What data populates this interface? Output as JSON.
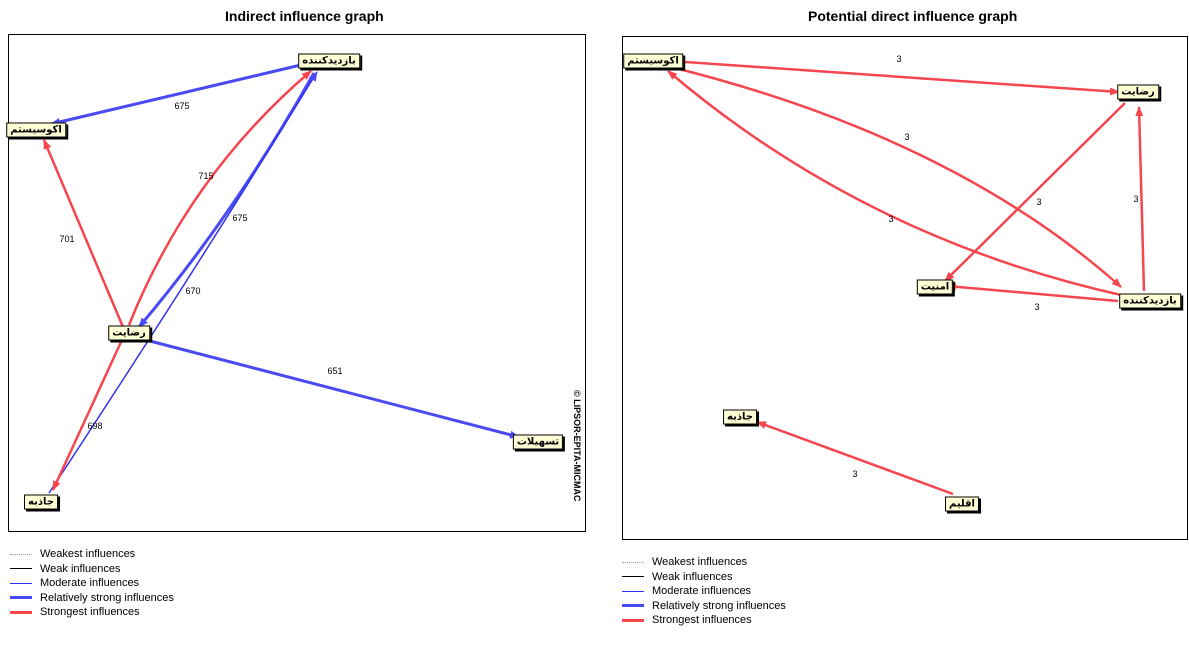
{
  "graphs": [
    {
      "title": "Indirect influence graph",
      "nodes": [
        {
          "id": "n1",
          "label": "بازدیدکننده"
        },
        {
          "id": "n2",
          "label": "اکوسیستم"
        },
        {
          "id": "n3",
          "label": "رضایت"
        },
        {
          "id": "n4",
          "label": "تسهیلات"
        },
        {
          "id": "n5",
          "label": "جاذبه"
        }
      ],
      "edges": [
        {
          "from": "n1",
          "to": "n2",
          "label": "675",
          "strength": "Relatively strong influences"
        },
        {
          "from": "n3",
          "to": "n2",
          "label": "701",
          "strength": "Strongest influences"
        },
        {
          "from": "n3",
          "to": "n1",
          "label": "715",
          "strength": "Strongest influences"
        },
        {
          "from": "n1",
          "to": "n3",
          "label": "675",
          "strength": "Relatively strong influences"
        },
        {
          "from": "n5",
          "to": "n1",
          "label": "670",
          "strength": "Moderate influences"
        },
        {
          "from": "n3",
          "to": "n4",
          "label": "651",
          "strength": "Relatively strong influences"
        },
        {
          "from": "n3",
          "to": "n5",
          "label": "698",
          "strength": "Strongest influences"
        }
      ],
      "copyright": "© LIPSOR-EPITA-MICMAC"
    },
    {
      "title": "Potential direct influence graph",
      "nodes": [
        {
          "id": "m1",
          "label": "اکوسیستم"
        },
        {
          "id": "m2",
          "label": "رضایت"
        },
        {
          "id": "m3",
          "label": "امنیت"
        },
        {
          "id": "m4",
          "label": "بازدیدکننده"
        },
        {
          "id": "m5",
          "label": "جاذبه"
        },
        {
          "id": "m6",
          "label": "اقلیم"
        }
      ],
      "edges": [
        {
          "from": "m1",
          "to": "m2",
          "label": "3",
          "strength": "Strongest influences"
        },
        {
          "from": "m1",
          "to": "m4",
          "label": "3",
          "strength": "Strongest influences"
        },
        {
          "from": "m4",
          "to": "m1",
          "label": "3",
          "strength": "Strongest influences"
        },
        {
          "from": "m2",
          "to": "m3",
          "label": "3",
          "strength": "Strongest influences"
        },
        {
          "from": "m4",
          "to": "m2",
          "label": "3",
          "strength": "Strongest influences"
        },
        {
          "from": "m4",
          "to": "m3",
          "label": "3",
          "strength": "Strongest influences"
        },
        {
          "from": "m6",
          "to": "m5",
          "label": "3",
          "strength": "Strongest influences"
        }
      ]
    }
  ],
  "legend": {
    "items": [
      {
        "label": "Weakest influences",
        "color": "#a0a0a0",
        "style": "dotted"
      },
      {
        "label": "Weak influences",
        "color": "#000000",
        "style": "thin"
      },
      {
        "label": "Moderate influences",
        "color": "#3333ee",
        "style": "thin"
      },
      {
        "label": "Relatively strong influences",
        "color": "#4a4af5",
        "style": "thick"
      },
      {
        "label": "Strongest influences",
        "color": "#f5464f",
        "style": "thick"
      }
    ]
  },
  "colors": {
    "red": "#f5464f",
    "blue": "#4a4af5",
    "node_bg": "#ffffd6"
  }
}
